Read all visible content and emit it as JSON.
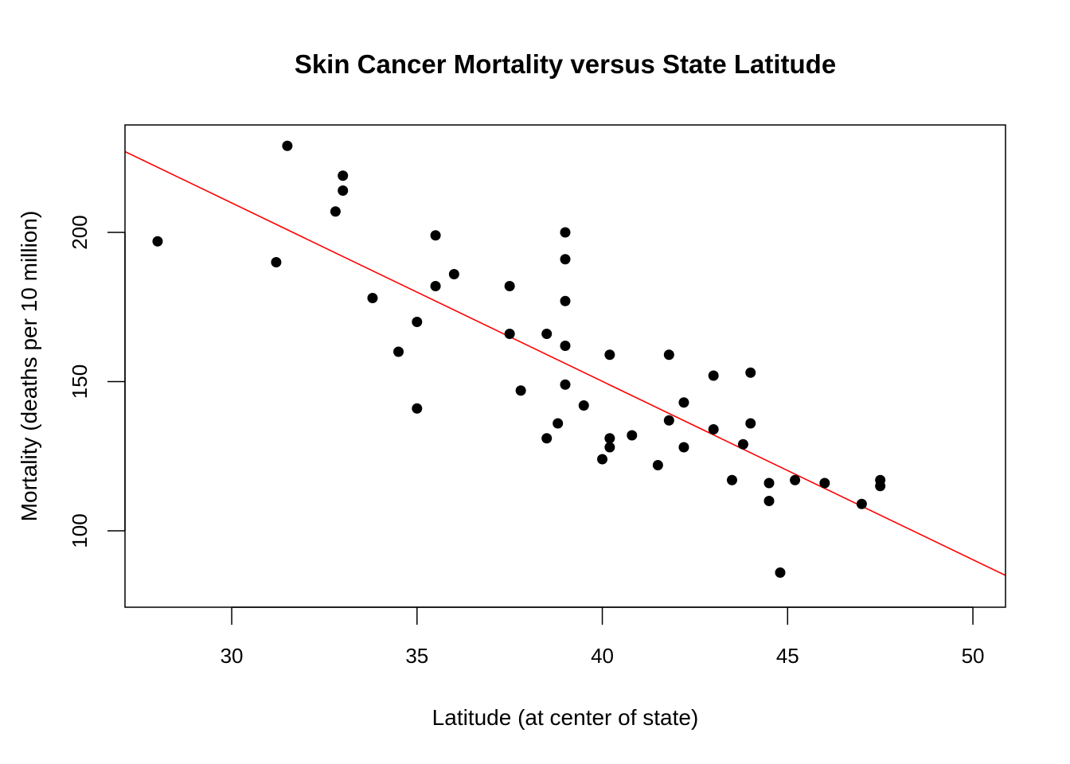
{
  "chart_data": {
    "type": "scatter",
    "title": "Skin Cancer Mortality versus State Latitude",
    "xlabel": "Latitude (at center of state)",
    "ylabel": "Mortality (deaths per 10 million)",
    "xlim": [
      27.12,
      50.88
    ],
    "ylim": [
      74.4,
      236
    ],
    "xticks": [
      30,
      35,
      40,
      45,
      50
    ],
    "yticks": [
      100,
      150,
      200
    ],
    "grid": false,
    "point_color": "#000000",
    "line_color": "#ff0000",
    "fit_line": {
      "intercept": 389.19,
      "slope": -5.9776
    },
    "points": [
      [
        28.0,
        197
      ],
      [
        31.5,
        229
      ],
      [
        31.2,
        190
      ],
      [
        33.0,
        219
      ],
      [
        33.0,
        214
      ],
      [
        32.8,
        207
      ],
      [
        33.8,
        178
      ],
      [
        34.5,
        160
      ],
      [
        35.0,
        170
      ],
      [
        35.0,
        141
      ],
      [
        35.5,
        199
      ],
      [
        35.5,
        182
      ],
      [
        36.0,
        186
      ],
      [
        37.5,
        182
      ],
      [
        37.5,
        166
      ],
      [
        37.8,
        147
      ],
      [
        38.5,
        166
      ],
      [
        38.5,
        131
      ],
      [
        38.8,
        136
      ],
      [
        39.0,
        200
      ],
      [
        39.0,
        191
      ],
      [
        39.0,
        177
      ],
      [
        39.0,
        162
      ],
      [
        39.0,
        149
      ],
      [
        39.5,
        142
      ],
      [
        40.0,
        124
      ],
      [
        40.2,
        159
      ],
      [
        40.2,
        131
      ],
      [
        40.2,
        128
      ],
      [
        40.8,
        132
      ],
      [
        41.5,
        122
      ],
      [
        41.8,
        159
      ],
      [
        41.8,
        137
      ],
      [
        42.2,
        143
      ],
      [
        42.2,
        128
      ],
      [
        43.0,
        152
      ],
      [
        43.0,
        134
      ],
      [
        43.5,
        117
      ],
      [
        43.8,
        129
      ],
      [
        44.0,
        153
      ],
      [
        44.0,
        136
      ],
      [
        44.5,
        116
      ],
      [
        44.5,
        110
      ],
      [
        44.8,
        86
      ],
      [
        45.2,
        117
      ],
      [
        46.0,
        116
      ],
      [
        47.0,
        109
      ],
      [
        47.5,
        117
      ],
      [
        47.5,
        115
      ]
    ]
  }
}
